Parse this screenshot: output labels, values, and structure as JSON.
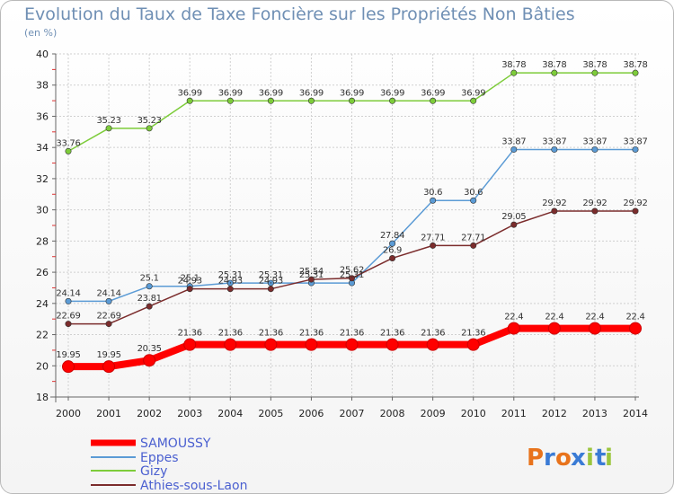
{
  "chart_data": {
    "type": "line",
    "title": "Evolution du Taux de Taxe Foncière sur les Propriétés Non Bâties",
    "ylabel": "(en %)",
    "xlabel": "",
    "ylim": [
      18,
      40
    ],
    "yticks": [
      18,
      20,
      22,
      24,
      26,
      28,
      30,
      32,
      34,
      36,
      38,
      40
    ],
    "categories": [
      "2000",
      "2001",
      "2002",
      "2003",
      "2004",
      "2005",
      "2006",
      "2007",
      "2008",
      "2009",
      "2010",
      "2011",
      "2012",
      "2013",
      "2014"
    ],
    "grid": true,
    "legend_position": "bottom-left",
    "series": [
      {
        "name": "SAMOUSSY",
        "color": "#ff0000",
        "values": [
          19.95,
          19.95,
          20.35,
          21.36,
          21.36,
          21.36,
          21.36,
          21.36,
          21.36,
          21.36,
          21.36,
          22.4,
          22.4,
          22.4,
          22.4
        ],
        "labels": [
          "19.95",
          "19.95",
          "20.35",
          "21.36",
          "21.36",
          "21.36",
          "21.36",
          "21.36",
          "21.36",
          "21.36",
          "21.36",
          "22.4",
          "22.4",
          "22.4",
          "22.4"
        ]
      },
      {
        "name": "Eppes",
        "color": "#5b9bd5",
        "values": [
          24.14,
          24.14,
          25.1,
          25.1,
          25.31,
          25.31,
          25.31,
          25.31,
          27.84,
          30.6,
          30.6,
          33.87,
          33.87,
          33.87,
          33.87
        ],
        "labels": [
          "24.14",
          "24.14",
          "25.1",
          "25.1",
          "25.31",
          "25.31",
          "25.31",
          "25.31",
          "27.84",
          "30.6",
          "30.6",
          "33.87",
          "33.87",
          "33.87",
          "33.87"
        ]
      },
      {
        "name": "Gizy",
        "color": "#7dcc3a",
        "values": [
          33.76,
          35.23,
          35.23,
          36.99,
          36.99,
          36.99,
          36.99,
          36.99,
          36.99,
          36.99,
          36.99,
          38.78,
          38.78,
          38.78,
          38.78
        ],
        "labels": [
          "33.76",
          "35.23",
          "35.23",
          "36.99",
          "36.99",
          "36.99",
          "36.99",
          "36.99",
          "36.99",
          "36.99",
          "36.99",
          "38.78",
          "38.78",
          "38.78",
          "38.78"
        ]
      },
      {
        "name": "Athies-sous-Laon",
        "color": "#7b2c2c",
        "values": [
          22.69,
          22.69,
          23.81,
          24.93,
          24.93,
          24.93,
          25.54,
          25.62,
          26.9,
          27.71,
          27.71,
          29.05,
          29.92,
          29.92,
          29.92
        ],
        "labels": [
          "22.69",
          "22.69",
          "23.81",
          "24.93",
          "24.93",
          "24.93",
          "25.54",
          "25.62",
          "26.9",
          "27.71",
          "27.71",
          "29.05",
          "29.92",
          "29.92",
          "29.92"
        ]
      }
    ]
  },
  "logo": {
    "letters": [
      "P",
      "r",
      "o",
      "x",
      "i",
      "t",
      "i"
    ],
    "colors": [
      "#e8731c",
      "#3a7bd5",
      "#e8731c",
      "#3a7bd5",
      "#9bc53d",
      "#3a7bd5",
      "#9bc53d"
    ]
  }
}
